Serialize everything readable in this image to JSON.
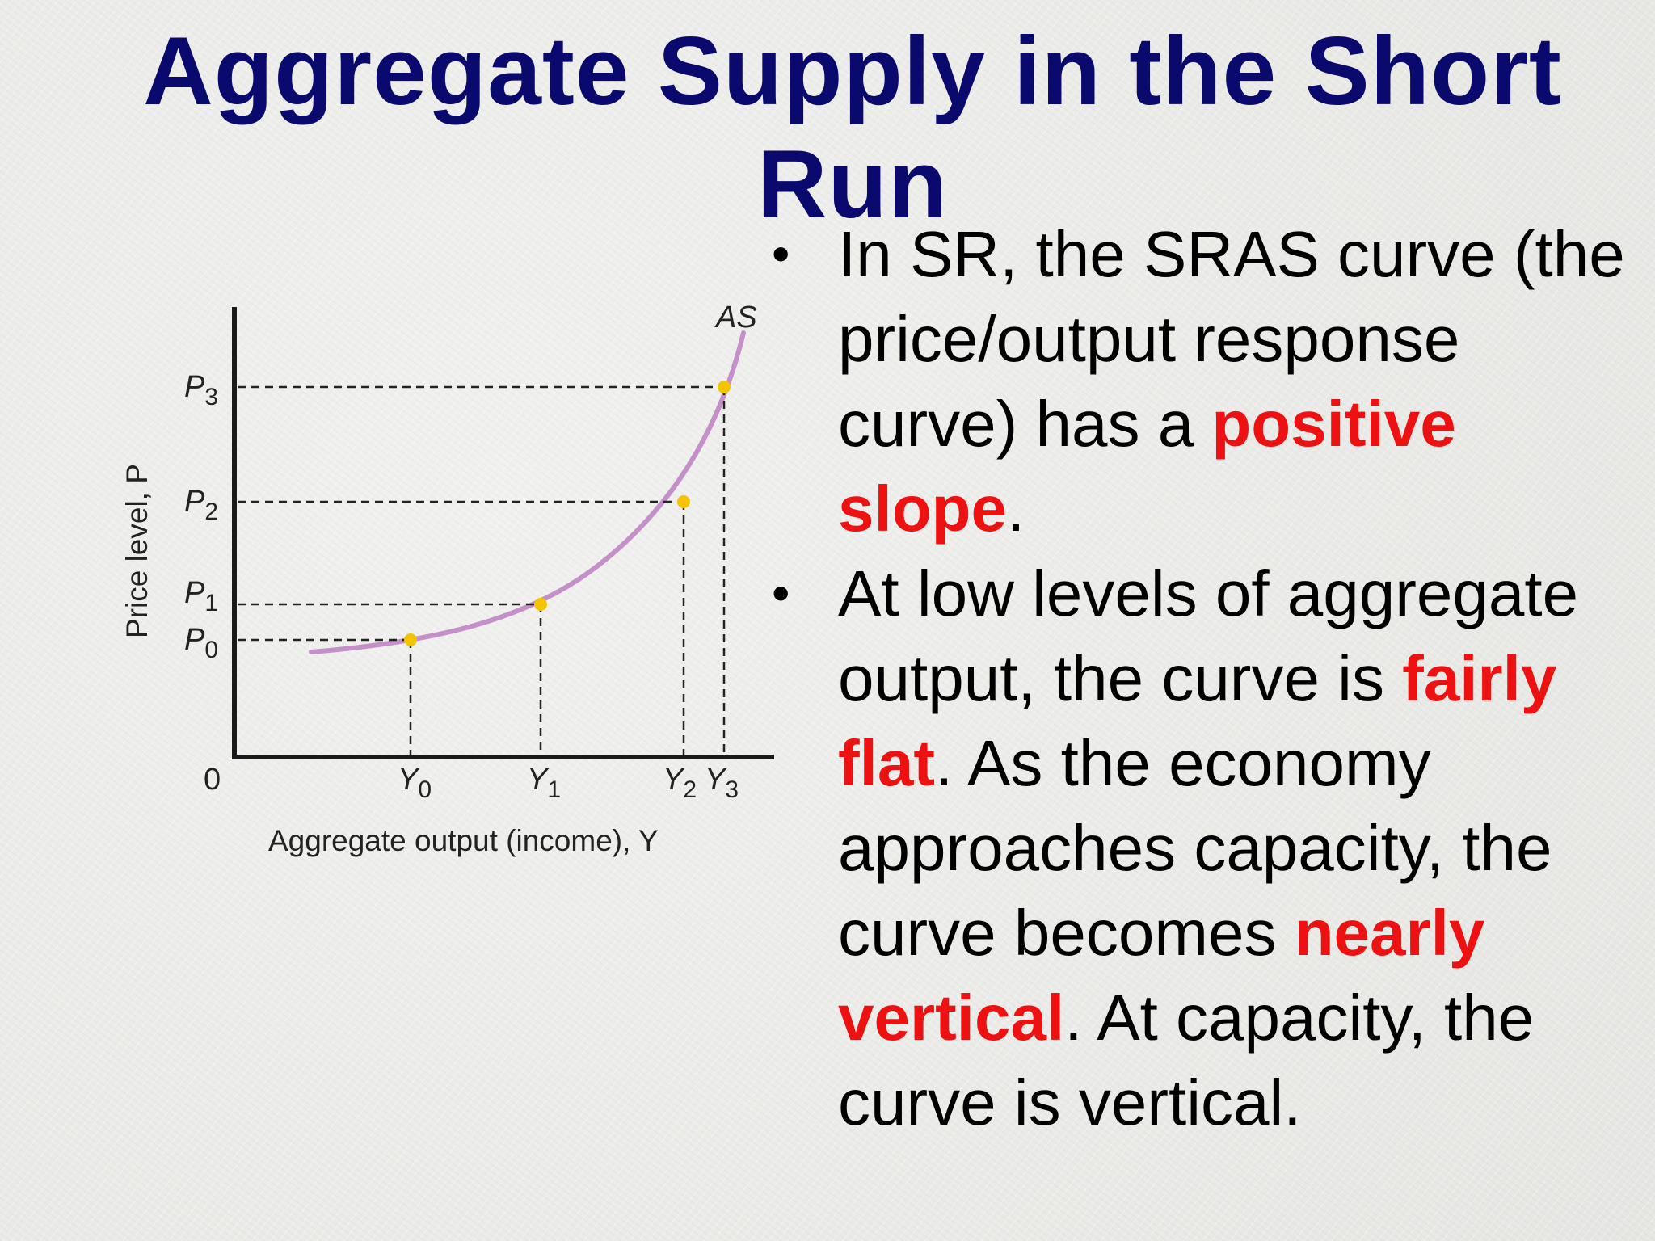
{
  "slide": {
    "title": "Aggregate Supply in the Short Run"
  },
  "bullets": [
    {
      "marker": "•",
      "parts": [
        {
          "text": "In SR, the SRAS curve (the price/output response curve) has a ",
          "highlight": false
        },
        {
          "text": "positive slope",
          "highlight": true
        },
        {
          "text": ".",
          "highlight": false
        }
      ]
    },
    {
      "marker": "•",
      "parts": [
        {
          "text": "At low levels of aggregate output, the curve is ",
          "highlight": false
        },
        {
          "text": "fairly flat",
          "highlight": true
        },
        {
          "text": ".  As the economy approaches capacity, the curve becomes ",
          "highlight": false
        },
        {
          "text": "nearly vertical",
          "highlight": true
        },
        {
          "text": ".  At capacity, the curve is vertical.",
          "highlight": false
        }
      ]
    }
  ],
  "chart_data": {
    "type": "line",
    "series": [
      {
        "name": "AS",
        "color": "#c58fc9"
      }
    ],
    "origin_label": "0",
    "xlabel": "Aggregate output (income), Y",
    "ylabel": "Price level, P",
    "points": [
      {
        "x_label": "Y",
        "x_sub": "0",
        "y_label": "P",
        "y_sub": "0"
      },
      {
        "x_label": "Y",
        "x_sub": "1",
        "y_label": "P",
        "y_sub": "1"
      },
      {
        "x_label": "Y",
        "x_sub": "2",
        "y_label": "P",
        "y_sub": "2"
      },
      {
        "x_label": "Y",
        "x_sub": "3",
        "y_label": "P",
        "y_sub": "3"
      }
    ],
    "point_color": "#f5c400",
    "grid": false
  },
  "colors": {
    "title": "#0a0a6e",
    "highlight": "#ee1111",
    "text": "#000000"
  }
}
